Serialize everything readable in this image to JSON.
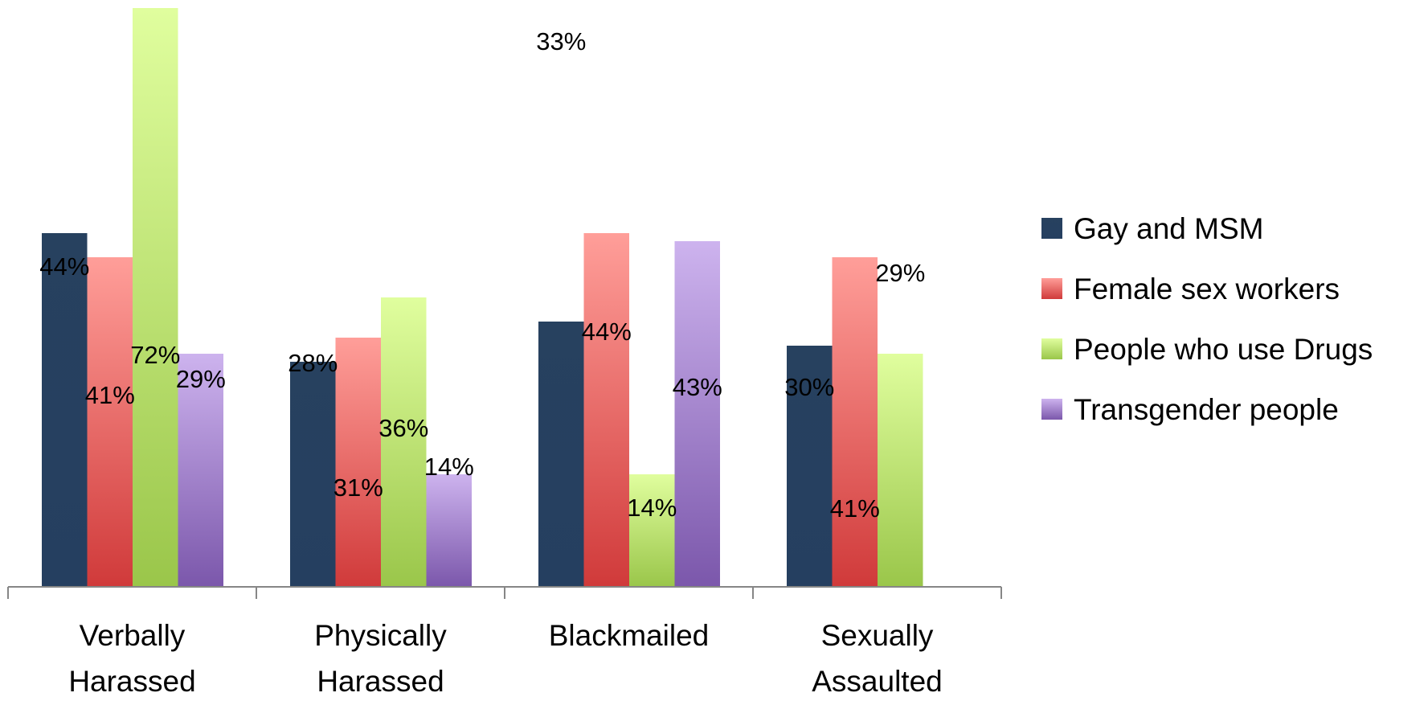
{
  "chart_data": {
    "type": "bar",
    "categories": [
      [
        "Verbally",
        "Harassed"
      ],
      [
        "Physically",
        "Harassed"
      ],
      [
        "Blackmailed"
      ],
      [
        "Sexually",
        "Assaulted"
      ]
    ],
    "series": [
      {
        "name": "Gay and MSM",
        "values": [
          44,
          28,
          33,
          30
        ],
        "labels": [
          "44%",
          "28%",
          "33%",
          "30%"
        ],
        "color": "#253F60",
        "color_light": "#27415F"
      },
      {
        "name": "Female sex workers",
        "values": [
          41,
          31,
          44,
          41
        ],
        "labels": [
          "41%",
          "31%",
          "44%",
          "41%"
        ],
        "color": "#D03A3A",
        "color_light": "#FF9E99"
      },
      {
        "name": "People who use Drugs",
        "values": [
          72,
          36,
          14,
          29
        ],
        "labels": [
          "72%",
          "36%",
          "14%",
          "29%"
        ],
        "color": "#9AC64A",
        "color_light": "#E0FE9E"
      },
      {
        "name": "Transgender people",
        "values": [
          29,
          14,
          43,
          null
        ],
        "labels": [
          "29%",
          "14%",
          "43%",
          null
        ],
        "color": "#7B57AB",
        "color_light": "#CDB3EE"
      }
    ],
    "ylim": [
      0,
      72
    ],
    "grid": false,
    "legend_position": "right",
    "title": "",
    "xlabel": "",
    "ylabel": ""
  }
}
